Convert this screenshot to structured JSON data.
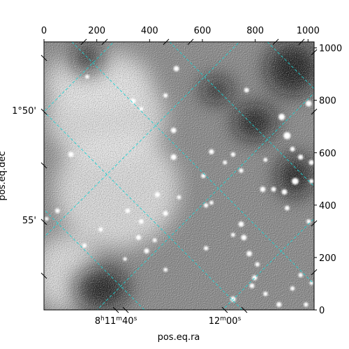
{
  "chart_data": {
    "type": "heatmap",
    "description_kind": "astronomical-image-with-wcs-grid",
    "colormap": "gray",
    "pixel_axes": {
      "x": {
        "range": [
          0,
          1023
        ],
        "ticks": [
          0,
          200,
          400,
          600,
          800,
          1000
        ],
        "labels": [
          "0",
          "200",
          "400",
          "600",
          "800",
          "1000"
        ]
      },
      "y": {
        "range": [
          0,
          1023
        ],
        "ticks": [
          0,
          200,
          400,
          600,
          800,
          1000
        ],
        "labels": [
          "0",
          "200",
          "400",
          "600",
          "800",
          "1000"
        ]
      }
    },
    "world_axes": {
      "ra": {
        "label": "pos.eq.ra",
        "ticks": [
          {
            "text_main": "8",
            "sup1": "h",
            "main2": "11",
            "sup2": "m",
            "main3": "40",
            "sup3": "s"
          },
          {
            "text_main": "12",
            "sup1": "m",
            "main2": "00",
            "sup2": "s",
            "main3": "",
            "sup3": ""
          }
        ]
      },
      "dec": {
        "label": "pos.eq.dec",
        "ticks": [
          "1°50'",
          "55'"
        ]
      }
    },
    "grid": {
      "on": true,
      "color": "#20d0d0",
      "style": "dashed"
    },
    "bright_sources": [
      {
        "x": 0.49,
        "y": 0.1,
        "r": 1.0
      },
      {
        "x": 0.16,
        "y": 0.13,
        "r": 0.6
      },
      {
        "x": 0.45,
        "y": 0.2,
        "r": 0.7
      },
      {
        "x": 0.33,
        "y": 0.22,
        "r": 0.9
      },
      {
        "x": 0.75,
        "y": 0.18,
        "r": 0.8
      },
      {
        "x": 0.98,
        "y": 0.23,
        "r": 1.2
      },
      {
        "x": 0.36,
        "y": 0.25,
        "r": 0.6
      },
      {
        "x": 0.88,
        "y": 0.28,
        "r": 1.3
      },
      {
        "x": 0.48,
        "y": 0.33,
        "r": 1.0
      },
      {
        "x": 0.9,
        "y": 0.35,
        "r": 1.5
      },
      {
        "x": 0.92,
        "y": 0.4,
        "r": 0.8
      },
      {
        "x": 0.62,
        "y": 0.41,
        "r": 0.9
      },
      {
        "x": 0.7,
        "y": 0.42,
        "r": 0.7
      },
      {
        "x": 0.48,
        "y": 0.43,
        "r": 1.1
      },
      {
        "x": 0.95,
        "y": 0.43,
        "r": 0.9
      },
      {
        "x": 0.1,
        "y": 0.42,
        "r": 1.0
      },
      {
        "x": 0.67,
        "y": 0.45,
        "r": 0.6
      },
      {
        "x": 0.82,
        "y": 0.44,
        "r": 0.6
      },
      {
        "x": 0.99,
        "y": 0.45,
        "r": 0.9
      },
      {
        "x": 0.73,
        "y": 0.48,
        "r": 0.7
      },
      {
        "x": 0.93,
        "y": 0.52,
        "r": 1.4
      },
      {
        "x": 0.81,
        "y": 0.55,
        "r": 1.0
      },
      {
        "x": 0.99,
        "y": 0.52,
        "r": 0.7
      },
      {
        "x": 0.85,
        "y": 0.55,
        "r": 0.8
      },
      {
        "x": 0.89,
        "y": 0.56,
        "r": 1.0
      },
      {
        "x": 0.59,
        "y": 0.5,
        "r": 0.7
      },
      {
        "x": 0.42,
        "y": 0.57,
        "r": 0.9
      },
      {
        "x": 0.5,
        "y": 0.58,
        "r": 0.6
      },
      {
        "x": 0.31,
        "y": 0.63,
        "r": 0.8
      },
      {
        "x": 0.6,
        "y": 0.61,
        "r": 0.7
      },
      {
        "x": 0.62,
        "y": 0.6,
        "r": 0.6
      },
      {
        "x": 0.9,
        "y": 0.62,
        "r": 0.8
      },
      {
        "x": 0.45,
        "y": 0.64,
        "r": 0.9
      },
      {
        "x": 0.36,
        "y": 0.67,
        "r": 0.8
      },
      {
        "x": 0.73,
        "y": 0.68,
        "r": 1.0
      },
      {
        "x": 0.98,
        "y": 0.67,
        "r": 0.7
      },
      {
        "x": 0.21,
        "y": 0.7,
        "r": 0.7
      },
      {
        "x": 0.35,
        "y": 0.73,
        "r": 0.9
      },
      {
        "x": 0.41,
        "y": 0.74,
        "r": 0.6
      },
      {
        "x": 0.7,
        "y": 0.72,
        "r": 0.6
      },
      {
        "x": 0.74,
        "y": 0.73,
        "r": 1.0
      },
      {
        "x": 0.15,
        "y": 0.76,
        "r": 0.7
      },
      {
        "x": 0.38,
        "y": 0.78,
        "r": 0.9
      },
      {
        "x": 0.6,
        "y": 0.77,
        "r": 0.7
      },
      {
        "x": 0.76,
        "y": 0.79,
        "r": 1.0
      },
      {
        "x": 0.3,
        "y": 0.81,
        "r": 0.5
      },
      {
        "x": 0.79,
        "y": 0.83,
        "r": 0.7
      },
      {
        "x": 0.45,
        "y": 0.85,
        "r": 0.6
      },
      {
        "x": 0.78,
        "y": 0.88,
        "r": 0.9
      },
      {
        "x": 0.95,
        "y": 0.87,
        "r": 0.7
      },
      {
        "x": 0.77,
        "y": 0.91,
        "r": 0.8
      },
      {
        "x": 0.82,
        "y": 0.94,
        "r": 0.7
      },
      {
        "x": 0.7,
        "y": 0.96,
        "r": 1.0
      },
      {
        "x": 0.92,
        "y": 0.92,
        "r": 0.7
      },
      {
        "x": 0.97,
        "y": 0.98,
        "r": 0.7
      },
      {
        "x": 0.87,
        "y": 0.98,
        "r": 0.9
      },
      {
        "x": 0.99,
        "y": 0.9,
        "r": 0.5
      },
      {
        "x": 0.05,
        "y": 0.63,
        "r": 0.8
      },
      {
        "x": 0.01,
        "y": 0.66,
        "r": 0.5
      }
    ],
    "bright_regions": [
      {
        "cx": 0.23,
        "cy": 0.28,
        "rx": 0.22,
        "ry": 0.18
      },
      {
        "cx": 0.08,
        "cy": 0.86,
        "rx": 0.12,
        "ry": 0.14
      },
      {
        "cx": 0.27,
        "cy": 0.55,
        "rx": 0.23,
        "ry": 0.22
      },
      {
        "cx": 0.2,
        "cy": 0.15,
        "rx": 0.2,
        "ry": 0.12
      }
    ],
    "dark_regions": [
      {
        "cx": 0.93,
        "cy": 0.5,
        "rx": 0.07,
        "ry": 0.08
      },
      {
        "cx": 0.78,
        "cy": 0.3,
        "rx": 0.08,
        "ry": 0.07
      },
      {
        "cx": 0.92,
        "cy": 0.1,
        "rx": 0.1,
        "ry": 0.1
      },
      {
        "cx": 0.21,
        "cy": 0.92,
        "rx": 0.1,
        "ry": 0.08
      },
      {
        "cx": 0.16,
        "cy": 0.06,
        "rx": 0.06,
        "ry": 0.06
      },
      {
        "cx": 0.64,
        "cy": 0.18,
        "rx": 0.06,
        "ry": 0.05
      }
    ]
  }
}
